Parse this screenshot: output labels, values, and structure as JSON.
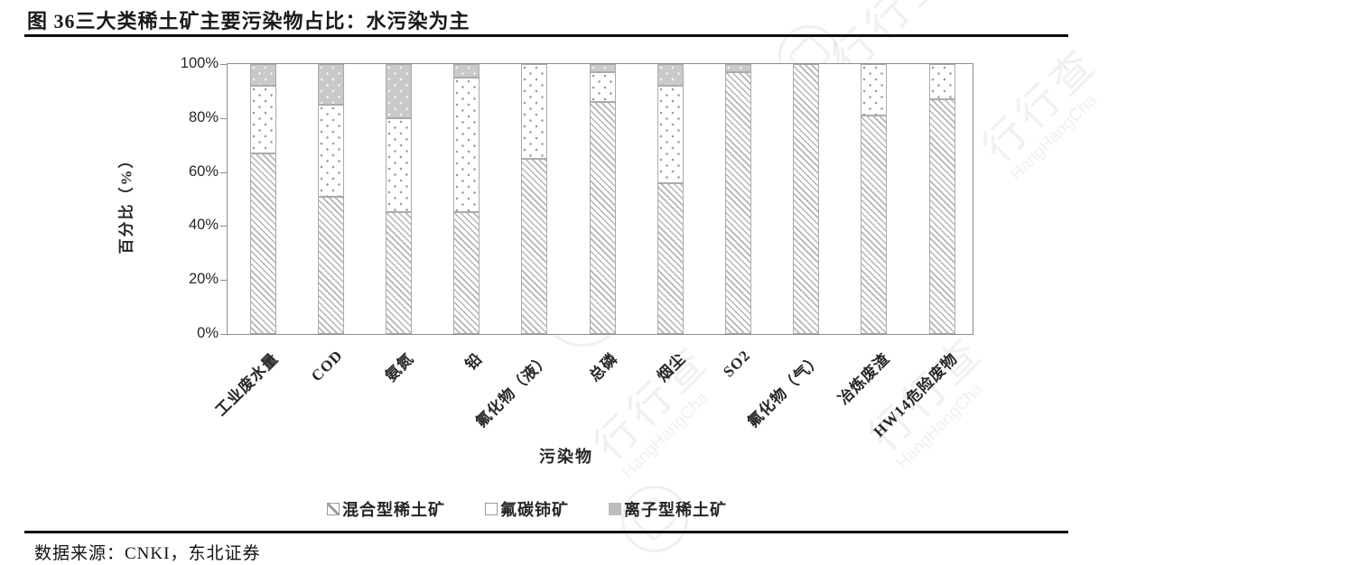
{
  "header": {
    "title": "图 36三大类稀土矿主要污染物占比：水污染为主"
  },
  "footer": {
    "source": "数据来源：CNKI，东北证券"
  },
  "watermark": {
    "cn": "行行查",
    "en": "HangHangCha"
  },
  "colors": {
    "rule": "#0d0d0d",
    "frame": "#8c8c8c",
    "hatch_line": "#b4b4b4",
    "dot": "#9c9c9c",
    "ion_fill": "#c9c9c9",
    "segment_border": "#ababab",
    "text": "#262626"
  },
  "chart_data": {
    "type": "bar",
    "stacked": true,
    "percent": true,
    "title": "",
    "xlabel": "污染物",
    "ylabel": "百分比（%）",
    "ylim": [
      0,
      100
    ],
    "yticks": [
      0,
      20,
      40,
      60,
      80,
      100
    ],
    "ytick_labels": [
      "0%",
      "20%",
      "40%",
      "60%",
      "80%",
      "100%"
    ],
    "grid": false,
    "legend_position": "bottom",
    "categories": [
      "工业废水量",
      "COD",
      "氨氮",
      "铅",
      "氟化物（液）",
      "总磷",
      "烟尘",
      "SO2",
      "氟化物（气）",
      "冶炼废渣",
      "HW14危险废物"
    ],
    "series": [
      {
        "name": "混合型稀土矿",
        "pattern": "diagonal-hatch",
        "values": [
          67,
          51,
          45,
          45,
          65,
          86,
          56,
          97,
          100,
          81,
          87
        ]
      },
      {
        "name": "氟碳铈矿",
        "pattern": "white-dots",
        "values": [
          25,
          34,
          35,
          50,
          35,
          11,
          36,
          0,
          0,
          19,
          13
        ]
      },
      {
        "name": "离子型稀土矿",
        "pattern": "solid-gray",
        "values": [
          8,
          15,
          20,
          5,
          0,
          3,
          8,
          3,
          0,
          0,
          0
        ]
      }
    ]
  }
}
